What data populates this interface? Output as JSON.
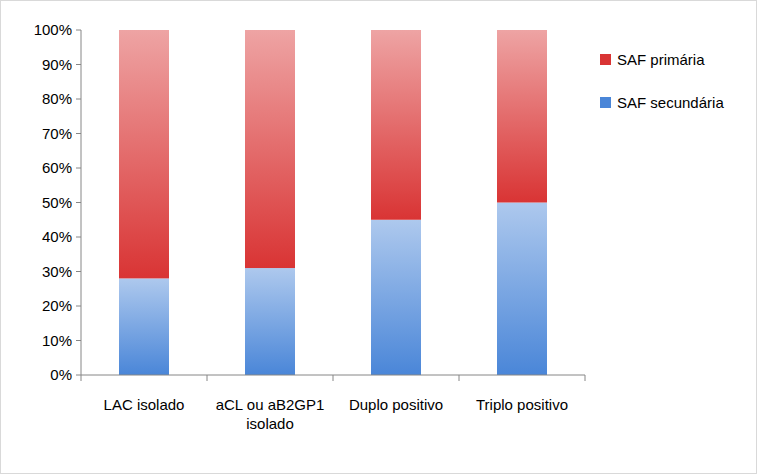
{
  "chart_data": {
    "type": "bar",
    "stacked": true,
    "categories": [
      "LAC isolado",
      "aCL ou aB2GP1 isolado",
      "Duplo positivo",
      "Triplo positivo"
    ],
    "series": [
      {
        "name": "SAF secundária",
        "color": "#4a86d8",
        "values": [
          28,
          31,
          45,
          50
        ]
      },
      {
        "name": "SAF primária",
        "color": "#d93434",
        "values": [
          72,
          69,
          55,
          50
        ]
      }
    ],
    "ylim": [
      0,
      100
    ],
    "yticks": [
      {
        "value": 0,
        "label": "0%"
      },
      {
        "value": 10,
        "label": "10%"
      },
      {
        "value": 20,
        "label": "20%"
      },
      {
        "value": 30,
        "label": "30%"
      },
      {
        "value": 40,
        "label": "40%"
      },
      {
        "value": 50,
        "label": "50%"
      },
      {
        "value": 60,
        "label": "60%"
      },
      {
        "value": 70,
        "label": "70%"
      },
      {
        "value": 80,
        "label": "80%"
      },
      {
        "value": 90,
        "label": "90%"
      },
      {
        "value": 100,
        "label": "100%"
      }
    ],
    "grid": false,
    "legend": "right"
  }
}
